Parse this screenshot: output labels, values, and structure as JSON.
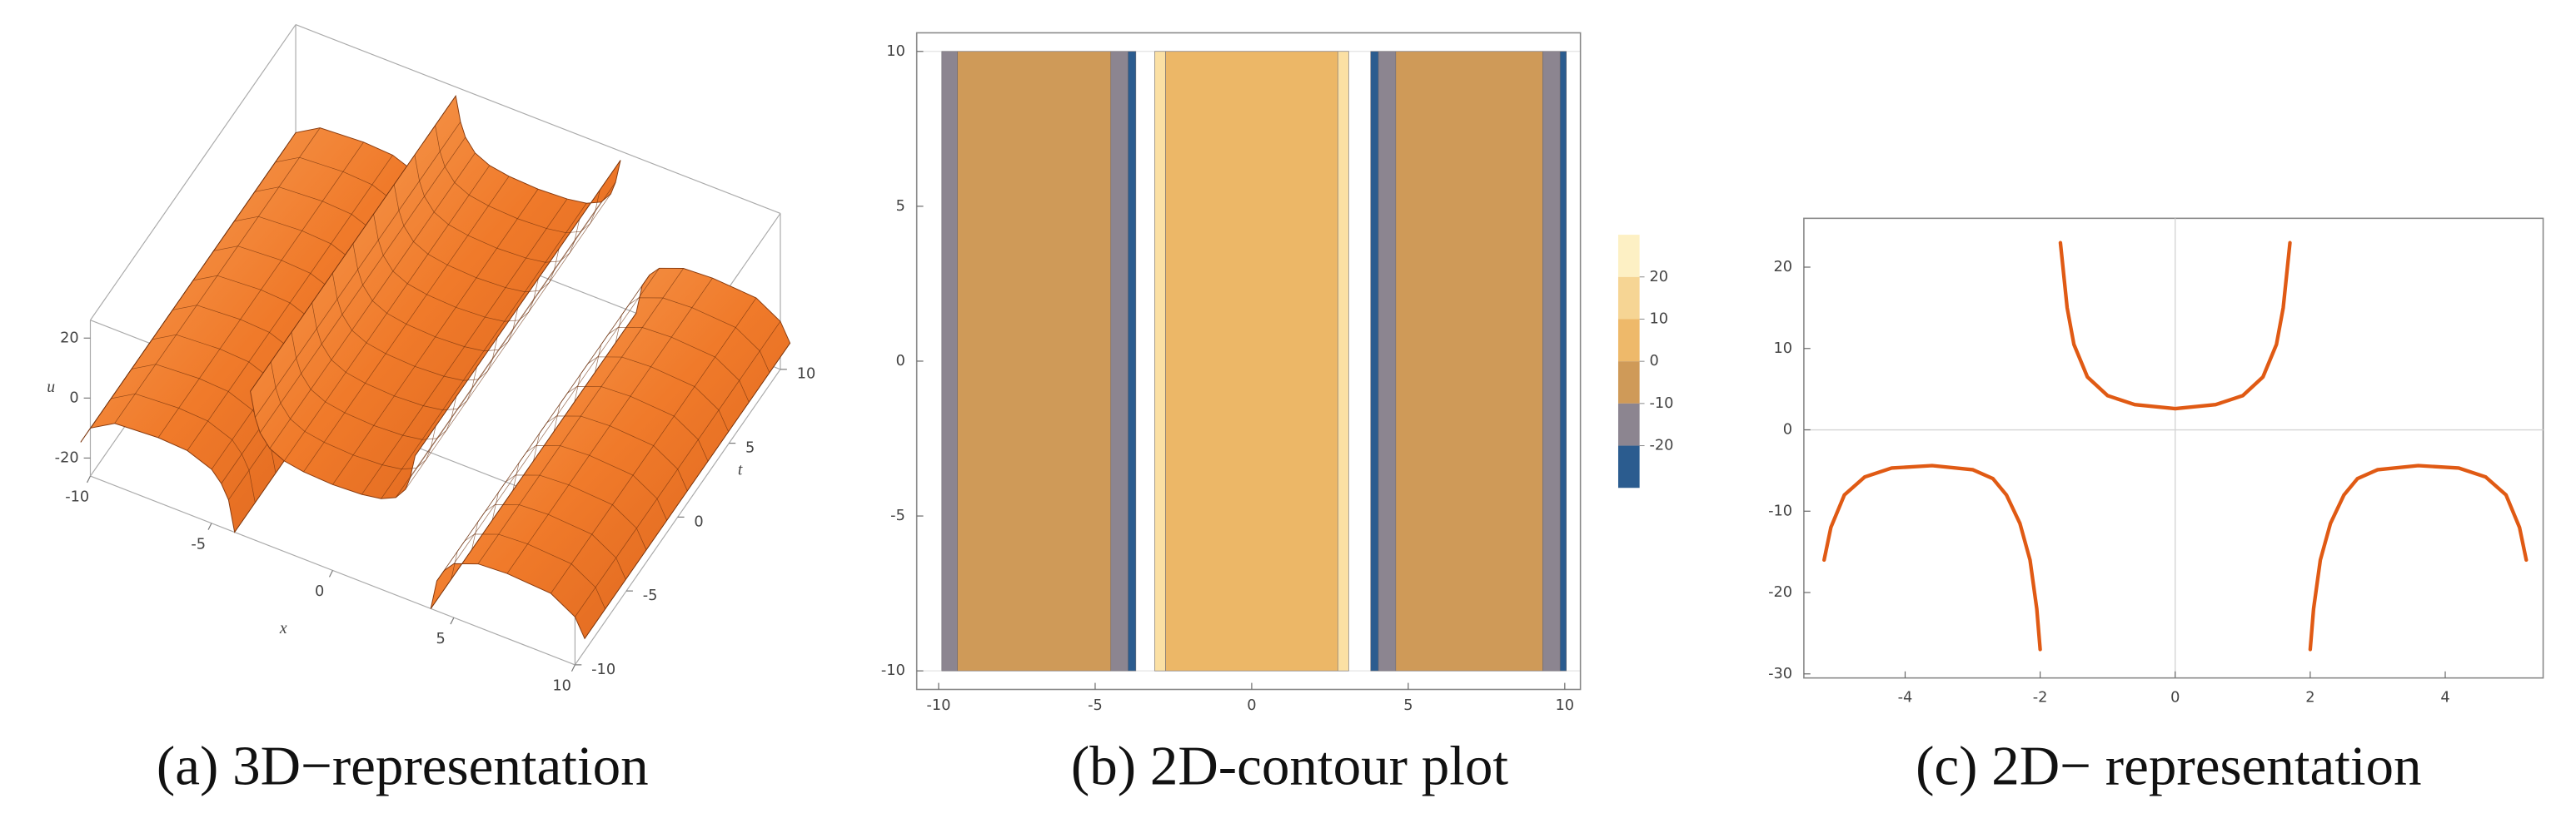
{
  "chart_data": [
    {
      "type": "surface3d",
      "xlabel": "x",
      "ylabel": "t",
      "zlabel": "u",
      "xlim": [
        -10,
        10
      ],
      "ylim": [
        -10,
        10
      ],
      "zlim": [
        -26,
        26
      ],
      "xticks": [
        -10,
        -5,
        0,
        5,
        10
      ],
      "yticks": [
        -10,
        -5,
        0,
        5,
        10
      ],
      "zticks": [
        -20,
        0,
        20
      ],
      "caption": "(a) 3D−representation"
    },
    {
      "type": "contour",
      "xlim": [
        -10.7,
        10.5
      ],
      "ylim": [
        -10.6,
        10.6
      ],
      "data_ylim": [
        -10,
        10
      ],
      "xticks": [
        -10,
        -5,
        0,
        5,
        10
      ],
      "yticks": [
        -10,
        -5,
        0,
        5,
        10
      ],
      "stripes": [
        {
          "x": [
            -9.9,
            -9.4
          ],
          "color": "#8c8590"
        },
        {
          "x": [
            -9.4,
            -4.5
          ],
          "color": "#cf9a58"
        },
        {
          "x": [
            -4.5,
            -3.95
          ],
          "color": "#8c8590"
        },
        {
          "x": [
            -3.95,
            -3.7
          ],
          "color": "#2b5c8f"
        },
        {
          "x": [
            -3.1,
            -2.75
          ],
          "color": "#fbe0a4"
        },
        {
          "x": [
            -2.75,
            2.75
          ],
          "color": "#ecb767"
        },
        {
          "x": [
            2.75,
            3.1
          ],
          "color": "#fbe0a4"
        },
        {
          "x": [
            3.8,
            4.05
          ],
          "color": "#2b5c8f"
        },
        {
          "x": [
            4.05,
            4.6
          ],
          "color": "#8c8590"
        },
        {
          "x": [
            4.6,
            9.3
          ],
          "color": "#cf9a58"
        },
        {
          "x": [
            9.3,
            9.85
          ],
          "color": "#8c8590"
        },
        {
          "x": [
            9.85,
            10.05
          ],
          "color": "#2b5c8f"
        }
      ],
      "legend_levels": [
        20,
        10,
        0,
        -10,
        -20
      ],
      "legend_colors": [
        "#fdf0c4",
        "#f6d594",
        "#eeb96a",
        "#cf9a58",
        "#8c8590",
        "#2b5c8f"
      ],
      "caption": "(b) 2D-contour plot"
    },
    {
      "type": "line",
      "xlim": [
        -5.5,
        5.45
      ],
      "ylim": [
        -30.5,
        26
      ],
      "xticks": [
        -4,
        -2,
        0,
        2,
        4
      ],
      "yticks": [
        -30,
        -20,
        -10,
        0,
        10,
        20
      ],
      "x": [
        -5.2,
        -5.1,
        -4.9,
        -4.6,
        -4.2,
        -3.6,
        -3.0,
        -2.7,
        -2.5,
        -2.3,
        -2.15,
        -2.05,
        -2.0,
        -1.85,
        -1.7,
        -1.6,
        -1.5,
        -1.3,
        -1.0,
        -0.6,
        0,
        0.6,
        1.0,
        1.3,
        1.5,
        1.6,
        1.7,
        1.85,
        2.0,
        2.05,
        2.15,
        2.3,
        2.5,
        2.7,
        3.0,
        3.6,
        4.2,
        4.6,
        4.9,
        5.1,
        5.2
      ],
      "series": [
        {
          "color": "#e05a14",
          "values": [
            -16,
            -12,
            -8,
            -5.8,
            -4.7,
            -4.4,
            -4.9,
            -6,
            -8,
            -11.5,
            -16,
            -22,
            -27,
            null,
            23,
            15,
            10.5,
            6.5,
            4.2,
            3.1,
            2.6,
            3.1,
            4.2,
            6.5,
            10.5,
            15,
            23,
            null,
            -27,
            -22,
            -16,
            -11.5,
            -8,
            -6,
            -4.9,
            -4.4,
            -4.7,
            -5.8,
            -8,
            -12,
            -16
          ]
        }
      ],
      "caption": "(c) 2D− representation"
    }
  ]
}
